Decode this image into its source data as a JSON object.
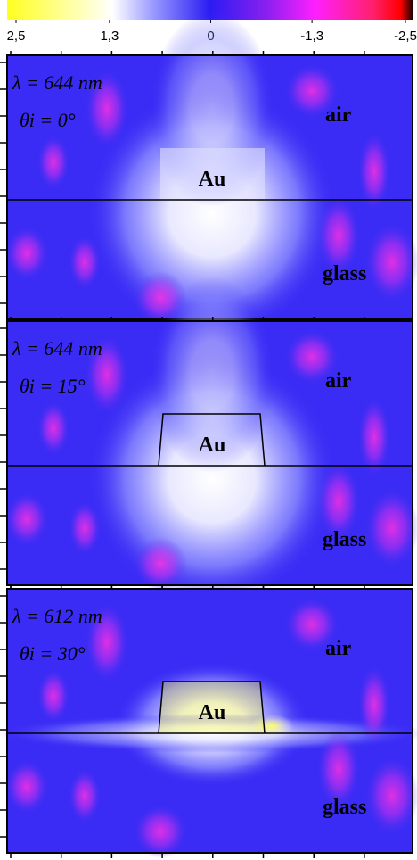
{
  "colorbar": {
    "lim": [
      2.5,
      -2.5
    ],
    "ticks": [
      {
        "value": 2.5,
        "label": "2,5"
      },
      {
        "value": 1.3,
        "label": "1,3"
      },
      0,
      {
        "value": -1.3,
        "label": "-1,3"
      },
      {
        "value": -2.5,
        "label": "-2,5"
      }
    ]
  },
  "panels": [
    {
      "wavelength": "λ = 644 nm",
      "angle": "θi = 0°",
      "upper": "air",
      "particle": "Au",
      "lower": "glass"
    },
    {
      "wavelength": "λ = 644 nm",
      "angle": "θi = 15°",
      "upper": "air",
      "particle": "Au",
      "lower": "glass"
    },
    {
      "wavelength": "λ = 612 nm",
      "angle": "θi = 30°",
      "upper": "air",
      "particle": "Au",
      "lower": "glass"
    }
  ]
}
